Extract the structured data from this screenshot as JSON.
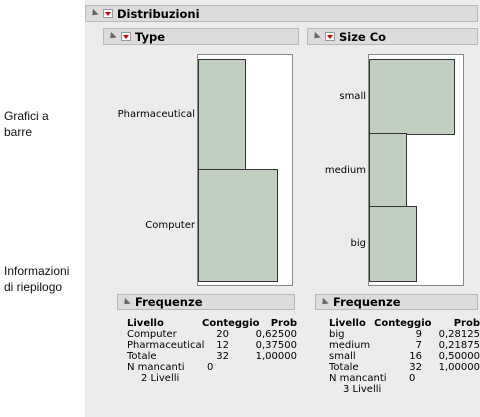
{
  "annotations": {
    "bar_charts": "Grafici a barre",
    "summary_info": "Informazioni di riepilogo"
  },
  "main_header": {
    "title": "Distribuzioni"
  },
  "type_report": {
    "title": "Type",
    "chart_data": {
      "type": "bar",
      "orientation": "horizontal",
      "categories": [
        "Pharmaceutical",
        "Computer"
      ],
      "values": [
        12,
        20
      ]
    },
    "frequencies": {
      "title": "Frequenze",
      "columns": [
        "Livello",
        "Conteggio",
        "Prob"
      ],
      "rows": [
        [
          "Computer",
          "20",
          "0,62500"
        ],
        [
          "Pharmaceutical",
          "12",
          "0,37500"
        ],
        [
          "Totale",
          "32",
          "1,00000"
        ]
      ],
      "missing_label": "N mancanti",
      "missing_value": "0",
      "levels": "2 Livelli"
    }
  },
  "size_report": {
    "title": "Size Co",
    "chart_data": {
      "type": "bar",
      "orientation": "horizontal",
      "categories": [
        "small",
        "medium",
        "big"
      ],
      "values": [
        16,
        7,
        9
      ]
    },
    "frequencies": {
      "title": "Frequenze",
      "columns": [
        "Livello",
        "Conteggio",
        "Prob"
      ],
      "rows": [
        [
          "big",
          "9",
          "0,28125"
        ],
        [
          "medium",
          "7",
          "0,21875"
        ],
        [
          "small",
          "16",
          "0,50000"
        ],
        [
          "Totale",
          "32",
          "1,00000"
        ]
      ],
      "missing_label": "N mancanti",
      "missing_value": "0",
      "levels": "3 Livelli"
    }
  }
}
